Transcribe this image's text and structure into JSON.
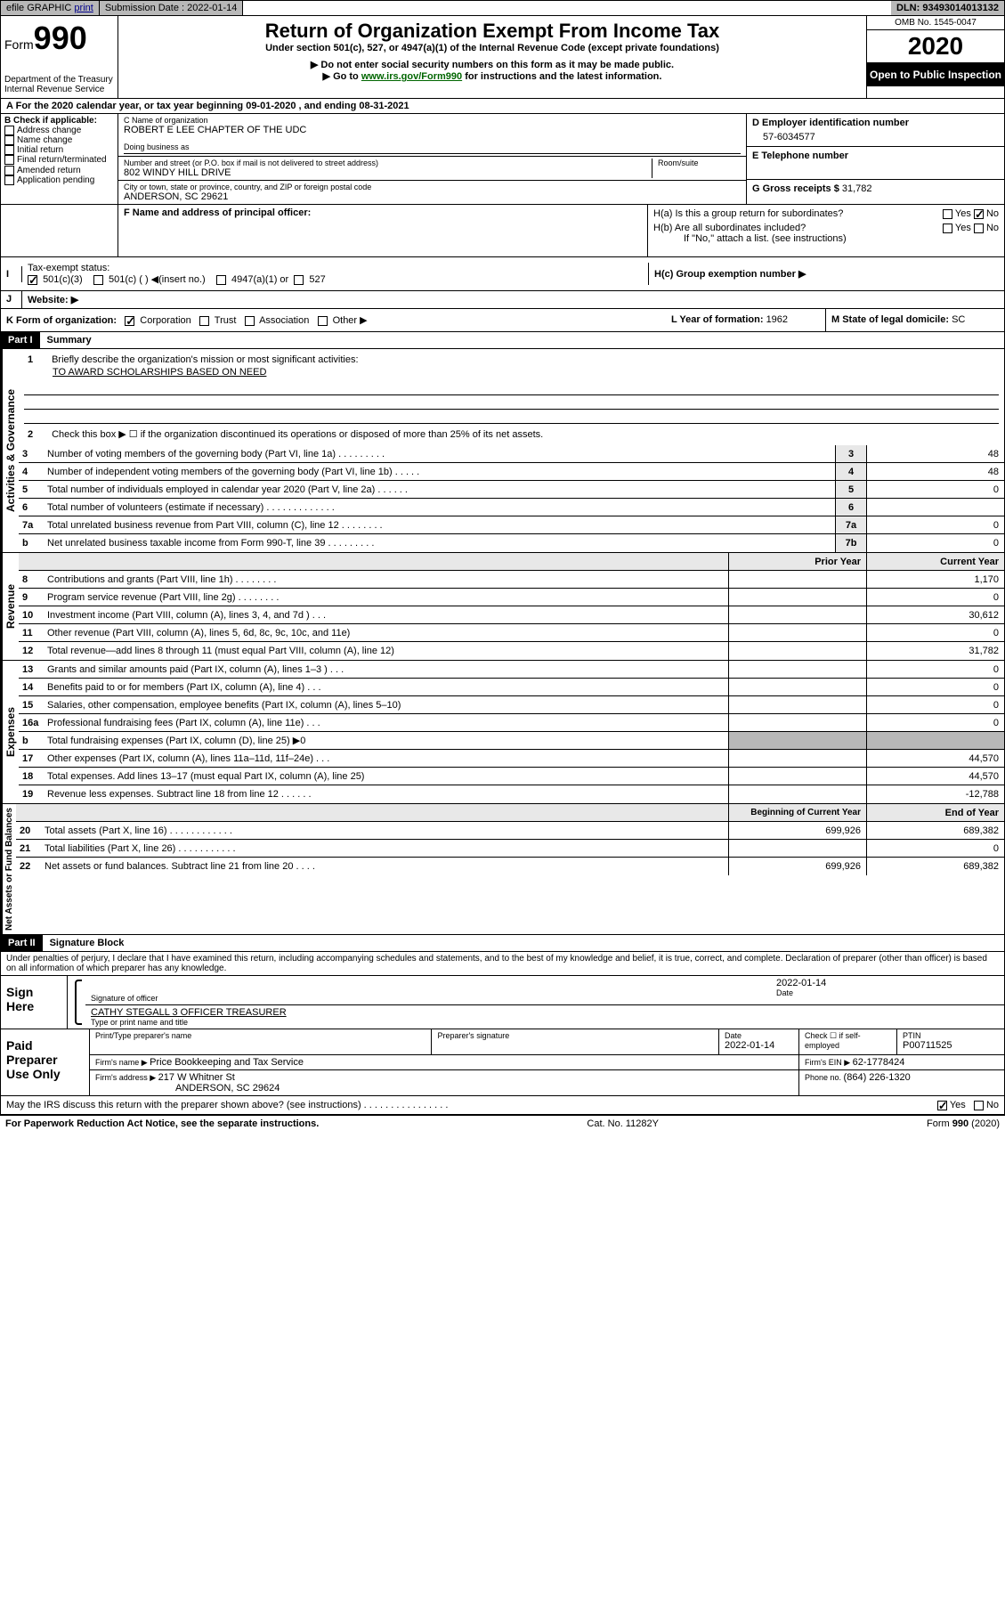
{
  "topbar": {
    "efile": "efile GRAPHIC",
    "print": "print",
    "sub_date_label": "Submission Date : 2022-01-14",
    "dln": "DLN: 93493014013132"
  },
  "header": {
    "form_label": "Form",
    "form_num": "990",
    "dept": "Department of the Treasury\nInternal Revenue Service",
    "title": "Return of Organization Exempt From Income Tax",
    "sub": "Under section 501(c), 527, or 4947(a)(1) of the Internal Revenue Code (except private foundations)",
    "instr1": "▶ Do not enter social security numbers on this form as it may be made public.",
    "instr2_pre": "▶ Go to ",
    "instr2_link": "www.irs.gov/Form990",
    "instr2_post": " for instructions and the latest information.",
    "omb": "OMB No. 1545-0047",
    "year": "2020",
    "inspection": "Open to Public Inspection"
  },
  "rowA": "For the 2020 calendar year, or tax year beginning 09-01-2020    , and ending 08-31-2021",
  "colB": {
    "label": "B Check if applicable:",
    "items": [
      "Address change",
      "Name change",
      "Initial return",
      "Final return/terminated",
      "Amended return",
      "Application pending"
    ]
  },
  "colC": {
    "name_label": "C Name of organization",
    "name": "ROBERT E LEE CHAPTER OF THE UDC",
    "dba_label": "Doing business as",
    "dba": "",
    "addr_label": "Number and street (or P.O. box if mail is not delivered to street address)",
    "room_label": "Room/suite",
    "addr": "802 WINDY HILL DRIVE",
    "city_label": "City or town, state or province, country, and ZIP or foreign postal code",
    "city": "ANDERSON, SC  29621",
    "officer_label": "F Name and address of principal officer:"
  },
  "colD": {
    "ein_label": "D Employer identification number",
    "ein": "57-6034577",
    "phone_label": "E Telephone number",
    "phone": "",
    "gross_label": "G Gross receipts $ ",
    "gross": "31,782"
  },
  "colH": {
    "a": "H(a)  Is this a group return for subordinates?",
    "b": "H(b)  Are all subordinates included?",
    "b_note": "If \"No,\" attach a list. (see instructions)",
    "c": "H(c)  Group exemption number ▶",
    "yes": "Yes",
    "no": "No"
  },
  "rowI": {
    "label": "Tax-exempt status:",
    "opt1": "501(c)(3)",
    "opt2": "501(c) (  ) ◀(insert no.)",
    "opt3": "4947(a)(1) or",
    "opt4": "527"
  },
  "rowJ": "Website: ▶",
  "rowK": {
    "label": "K Form of organization:",
    "opts": [
      "Corporation",
      "Trust",
      "Association",
      "Other ▶"
    ],
    "year_label": "L Year of formation: ",
    "year": "1962",
    "state_label": "M State of legal domicile: ",
    "state": "SC"
  },
  "part1": {
    "header": "Part I",
    "title": "Summary",
    "vlabel1": "Activities & Governance",
    "vlabel2": "Revenue",
    "vlabel3": "Expenses",
    "vlabel4": "Net Assets or Fund Balances",
    "q1": "Briefly describe the organization's mission or most significant activities:",
    "mission": "TO AWARD SCHOLARSHIPS BASED ON NEED",
    "q2": "Check this box ▶ ☐  if the organization discontinued its operations or disposed of more than 25% of its net assets.",
    "lines_gov": [
      {
        "n": "3",
        "t": "Number of voting members of the governing body (Part VI, line 1a)   .    .    .    .    .    .    .    .    .",
        "c": "3",
        "v": "48"
      },
      {
        "n": "4",
        "t": "Number of independent voting members of the governing body (Part VI, line 1b)   .    .    .    .    .",
        "c": "4",
        "v": "48"
      },
      {
        "n": "5",
        "t": "Total number of individuals employed in calendar year 2020 (Part V, line 2a)   .    .    .    .    .    .",
        "c": "5",
        "v": "0"
      },
      {
        "n": "6",
        "t": "Total number of volunteers (estimate if necessary)   .    .    .    .    .    .    .    .    .    .    .    .    .",
        "c": "6",
        "v": ""
      },
      {
        "n": "7a",
        "t": "Total unrelated business revenue from Part VIII, column (C), line 12   .    .    .    .    .    .    .    .",
        "c": "7a",
        "v": "0"
      },
      {
        "n": "b",
        "t": "Net unrelated business taxable income from Form 990-T, line 39   .    .    .    .    .    .    .    .    .",
        "c": "7b",
        "v": "0"
      }
    ],
    "col_prior": "Prior Year",
    "col_current": "Current Year",
    "lines_rev": [
      {
        "n": "8",
        "t": "Contributions and grants (Part VIII, line 1h)   .    .    .    .    .    .    .    .",
        "p": "",
        "c": "1,170"
      },
      {
        "n": "9",
        "t": "Program service revenue (Part VIII, line 2g)   .    .    .    .    .    .    .    .",
        "p": "",
        "c": "0"
      },
      {
        "n": "10",
        "t": "Investment income (Part VIII, column (A), lines 3, 4, and 7d )   .    .    .",
        "p": "",
        "c": "30,612"
      },
      {
        "n": "11",
        "t": "Other revenue (Part VIII, column (A), lines 5, 6d, 8c, 9c, 10c, and 11e)",
        "p": "",
        "c": "0"
      },
      {
        "n": "12",
        "t": "Total revenue—add lines 8 through 11 (must equal Part VIII, column (A), line 12)",
        "p": "",
        "c": "31,782"
      }
    ],
    "lines_exp": [
      {
        "n": "13",
        "t": "Grants and similar amounts paid (Part IX, column (A), lines 1–3 )   .    .    .",
        "p": "",
        "c": "0"
      },
      {
        "n": "14",
        "t": "Benefits paid to or for members (Part IX, column (A), line 4)   .    .    .",
        "p": "",
        "c": "0"
      },
      {
        "n": "15",
        "t": "Salaries, other compensation, employee benefits (Part IX, column (A), lines 5–10)",
        "p": "",
        "c": "0"
      },
      {
        "n": "16a",
        "t": "Professional fundraising fees (Part IX, column (A), line 11e)   .    .    .",
        "p": "",
        "c": "0"
      },
      {
        "n": "b",
        "t": "Total fundraising expenses (Part IX, column (D), line 25) ▶0",
        "p": "shaded",
        "c": "shaded"
      },
      {
        "n": "17",
        "t": "Other expenses (Part IX, column (A), lines 11a–11d, 11f–24e)   .    .    .",
        "p": "",
        "c": "44,570"
      },
      {
        "n": "18",
        "t": "Total expenses. Add lines 13–17 (must equal Part IX, column (A), line 25)",
        "p": "",
        "c": "44,570"
      },
      {
        "n": "19",
        "t": "Revenue less expenses. Subtract line 18 from line 12   .    .    .    .    .    .",
        "p": "",
        "c": "-12,788"
      }
    ],
    "col_begin": "Beginning of Current Year",
    "col_end": "End of Year",
    "lines_net": [
      {
        "n": "20",
        "t": "Total assets (Part X, line 16)   .    .    .    .    .    .    .    .    .    .    .    .",
        "p": "699,926",
        "c": "689,382"
      },
      {
        "n": "21",
        "t": "Total liabilities (Part X, line 26)   .    .    .    .    .    .    .    .    .    .    .",
        "p": "",
        "c": "0"
      },
      {
        "n": "22",
        "t": "Net assets or fund balances. Subtract line 21 from line 20   .    .    .    .",
        "p": "699,926",
        "c": "689,382"
      }
    ]
  },
  "part2": {
    "header": "Part II",
    "title": "Signature Block",
    "penalties": "Under penalties of perjury, I declare that I have examined this return, including accompanying schedules and statements, and to the best of my knowledge and belief, it is true, correct, and complete. Declaration of preparer (other than officer) is based on all information of which preparer has any knowledge.",
    "sign_here": "Sign Here",
    "sig_label": "Signature of officer",
    "date_label": "Date",
    "sig_date": "2022-01-14",
    "officer": "CATHY STEGALL 3 OFFICER  TREASURER",
    "type_label": "Type or print name and title",
    "paid": "Paid Preparer Use Only",
    "prep_name_label": "Print/Type preparer's name",
    "prep_sig_label": "Preparer's signature",
    "prep_date_label": "Date",
    "prep_date": "2022-01-14",
    "check_label": "Check ☐ if self-employed",
    "ptin_label": "PTIN",
    "ptin": "P00711525",
    "firm_name_label": "Firm's name    ▶ ",
    "firm_name": "Price Bookkeeping and Tax Service",
    "firm_ein_label": "Firm's EIN ▶ ",
    "firm_ein": "62-1778424",
    "firm_addr_label": "Firm's address ▶ ",
    "firm_addr": "217 W Whitner St",
    "firm_city": "ANDERSON, SC  29624",
    "phone_label": "Phone no. ",
    "phone": "(864) 226-1320",
    "discuss": "May the IRS discuss this return with the preparer shown above? (see instructions)   .    .    .    .    .    .    .    .    .    .    .    .    .    .    .    .",
    "yes": "Yes",
    "no": "No"
  },
  "footer": {
    "paperwork": "For Paperwork Reduction Act Notice, see the separate instructions.",
    "cat": "Cat. No. 11282Y",
    "form": "Form 990 (2020)"
  }
}
